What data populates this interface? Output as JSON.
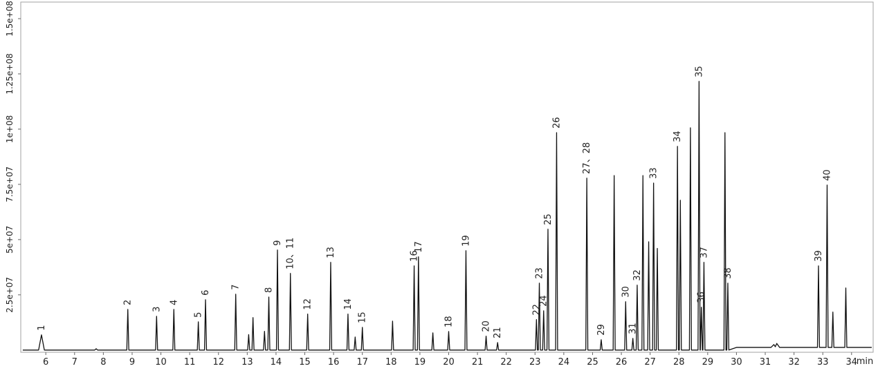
{
  "chart_data": {
    "type": "line",
    "x_label": "min",
    "color": "#111111",
    "xlim": [
      5.13,
      34.75
    ],
    "ylim": [
      -1000000,
      157500000
    ],
    "xticks": [
      6,
      7,
      8,
      9,
      10,
      11,
      12,
      13,
      14,
      15,
      16,
      17,
      18,
      19,
      20,
      21,
      22,
      23,
      24,
      25,
      26,
      27,
      28,
      29,
      30,
      31,
      32,
      33,
      34
    ],
    "yticks": [
      {
        "value": 25000000,
        "label": "2.5e+07"
      },
      {
        "value": 50000000,
        "label": "5e+07"
      },
      {
        "value": 75000000,
        "label": "7.5e+07"
      },
      {
        "value": 100000000,
        "label": "1e+08"
      },
      {
        "value": 125000000,
        "label": "1.25e+08"
      },
      {
        "value": 150000000,
        "label": "1.5e+08"
      }
    ],
    "x": [
      5.2,
      5.75,
      5.85,
      5.95,
      7.7,
      7.75,
      7.8,
      8.815,
      8.85,
      8.885,
      9.815,
      9.85,
      9.885,
      10.415,
      10.45,
      10.485,
      11.265,
      11.3,
      11.335,
      11.515,
      11.55,
      11.585,
      12.565,
      12.6,
      12.635,
      13.015,
      13.05,
      13.085,
      13.165,
      13.2,
      13.235,
      13.565,
      13.6,
      13.635,
      13.715,
      13.75,
      13.785,
      14.015,
      14.05,
      14.085,
      14.465,
      14.5,
      14.535,
      15.065,
      15.1,
      15.135,
      15.865,
      15.9,
      15.935,
      16.465,
      16.5,
      16.535,
      16.715,
      16.75,
      16.785,
      16.965,
      17.0,
      17.035,
      18.015,
      18.05,
      18.085,
      18.765,
      18.8,
      18.835,
      18.915,
      18.95,
      18.985,
      19.415,
      19.45,
      19.485,
      19.965,
      20.0,
      20.035,
      20.565,
      20.6,
      20.635,
      21.265,
      21.3,
      21.335,
      21.665,
      21.7,
      21.735,
      23.015,
      23.05,
      23.085,
      23.115,
      23.15,
      23.185,
      23.265,
      23.3,
      23.335,
      23.415,
      23.45,
      23.485,
      23.715,
      23.75,
      23.785,
      24.765,
      24.8,
      24.835,
      25.265,
      25.3,
      25.335,
      25.715,
      25.75,
      25.785,
      26.115,
      26.15,
      26.185,
      26.365,
      26.4,
      26.435,
      26.515,
      26.55,
      26.585,
      26.715,
      26.75,
      26.785,
      26.915,
      26.95,
      26.985,
      27.085,
      27.12,
      27.155,
      27.215,
      27.25,
      27.285,
      27.915,
      27.95,
      27.985,
      28.015,
      28.05,
      28.085,
      28.365,
      28.4,
      28.435,
      28.665,
      28.7,
      28.735,
      28.745,
      28.78,
      28.815,
      28.835,
      28.87,
      28.905,
      29.565,
      29.6,
      29.635,
      29.665,
      29.7,
      29.735,
      30.0,
      31.2,
      31.3,
      31.35,
      31.4,
      31.5,
      32.815,
      32.85,
      32.885,
      33.115,
      33.15,
      33.185,
      33.315,
      33.35,
      33.385,
      33.765,
      33.8,
      33.835,
      34.7
    ],
    "values": [
      0,
      0,
      6900000,
      0,
      0,
      600000,
      0,
      0,
      18400000,
      0,
      0,
      15300000,
      0,
      0,
      18400000,
      0,
      0,
      12800000,
      0,
      0,
      22800000,
      0,
      0,
      25300000,
      0,
      0,
      7000000,
      0,
      0,
      14700000,
      0,
      0,
      8500000,
      0,
      0,
      24000000,
      0,
      0,
      45300000,
      0,
      0,
      34700000,
      0,
      0,
      16300000,
      0,
      0,
      39700000,
      0,
      0,
      16300000,
      0,
      0,
      5900000,
      0,
      0,
      10300000,
      0,
      0,
      13100000,
      0,
      0,
      38100000,
      0,
      0,
      42200000,
      0,
      0,
      7800000,
      0,
      0,
      8400000,
      0,
      0,
      45000000,
      0,
      0,
      6300000,
      0,
      0,
      3400000,
      0,
      0,
      13800000,
      0,
      0,
      30300000,
      0,
      0,
      17800000,
      0,
      0,
      54700000,
      0,
      0,
      98400000,
      0,
      0,
      77800000,
      0,
      0,
      4700000,
      0,
      0,
      79000000,
      0,
      0,
      21900000,
      0,
      0,
      5300000,
      0,
      0,
      29400000,
      0,
      0,
      79000000,
      0,
      0,
      49000000,
      0,
      0,
      75600000,
      0,
      0,
      46000000,
      0,
      0,
      92200000,
      0,
      0,
      67800000,
      0,
      0,
      100600000,
      0,
      0,
      121600000,
      0,
      0,
      19400000,
      0,
      0,
      39700000,
      0,
      0,
      98400000,
      0,
      0,
      30300000,
      0,
      1200000,
      1200000,
      2500000,
      1500000,
      3000000,
      1200000,
      1200000,
      38100000,
      1200000,
      1200000,
      74700000,
      1200000,
      1200000,
      17200000,
      1200000,
      1200000,
      28100000,
      1200000,
      1200000
    ],
    "annotations": [
      {
        "text": "1",
        "x": 5.85
      },
      {
        "text": "2",
        "x": 8.85
      },
      {
        "text": "3",
        "x": 9.85
      },
      {
        "text": "4",
        "x": 10.45
      },
      {
        "text": "5",
        "x": 11.3
      },
      {
        "text": "6",
        "x": 11.55
      },
      {
        "text": "7",
        "x": 12.6
      },
      {
        "text": "8",
        "x": 13.75
      },
      {
        "text": "9",
        "x": 14.05
      },
      {
        "text": "10、11",
        "x": 14.5
      },
      {
        "text": "12",
        "x": 15.1
      },
      {
        "text": "13",
        "x": 15.9
      },
      {
        "text": "14",
        "x": 16.5
      },
      {
        "text": "15",
        "x": 17.0
      },
      {
        "text": "16",
        "x": 18.8
      },
      {
        "text": "17",
        "x": 18.95
      },
      {
        "text": "18",
        "x": 20.0
      },
      {
        "text": "19",
        "x": 20.6
      },
      {
        "text": "20",
        "x": 21.3
      },
      {
        "text": "21",
        "x": 21.7
      },
      {
        "text": "22",
        "x": 23.05
      },
      {
        "text": "23",
        "x": 23.15
      },
      {
        "text": "24",
        "x": 23.3
      },
      {
        "text": "25",
        "x": 23.45
      },
      {
        "text": "26",
        "x": 23.75
      },
      {
        "text": "27、28",
        "x": 24.8
      },
      {
        "text": "29",
        "x": 25.3
      },
      {
        "text": "30",
        "x": 26.15
      },
      {
        "text": "31",
        "x": 26.4
      },
      {
        "text": "32",
        "x": 26.55
      },
      {
        "text": "33",
        "x": 27.12
      },
      {
        "text": "34",
        "x": 27.95
      },
      {
        "text": "35",
        "x": 28.7
      },
      {
        "text": "36",
        "x": 28.78
      },
      {
        "text": "37",
        "x": 28.87
      },
      {
        "text": "38",
        "x": 29.7
      },
      {
        "text": "39",
        "x": 32.85
      },
      {
        "text": "40",
        "x": 33.15
      }
    ]
  }
}
